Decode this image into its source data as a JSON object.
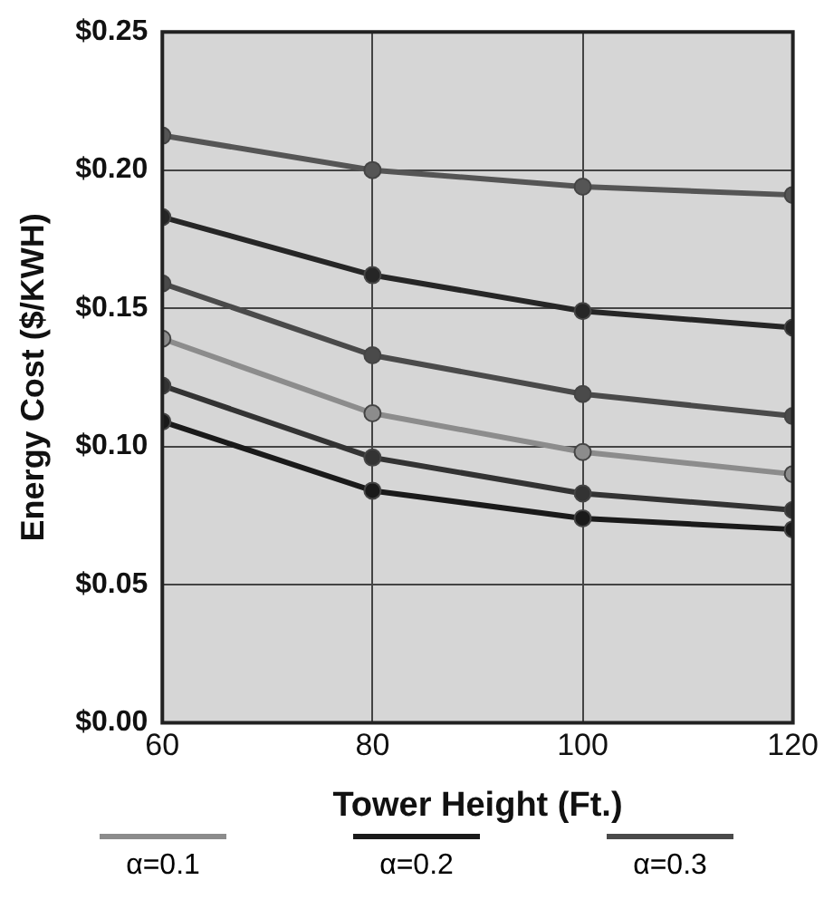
{
  "chart_data": {
    "type": "line",
    "xlabel": "Tower Height (Ft.)",
    "ylabel": "Energy Cost ($/KWH)",
    "x": [
      60,
      80,
      100,
      120
    ],
    "series": [
      {
        "name": "α=0.1",
        "color": "#8c8c8c",
        "values": [
          0.139,
          0.112,
          0.098,
          0.09
        ]
      },
      {
        "name": "α=0.2",
        "color": "#1a1a1a",
        "values": [
          0.109,
          0.084,
          0.074,
          0.07
        ]
      },
      {
        "name": "α=0.3",
        "color": "#4a4a4a",
        "values": [
          0.159,
          0.133,
          0.119,
          0.111
        ]
      },
      {
        "color": "#555555",
        "values": [
          0.2125,
          0.2,
          0.194,
          0.191
        ]
      },
      {
        "color": "#262626",
        "values": [
          0.183,
          0.162,
          0.149,
          0.143
        ]
      },
      {
        "color": "#333333",
        "values": [
          0.122,
          0.096,
          0.083,
          0.077
        ]
      }
    ],
    "xlim": [
      60,
      120
    ],
    "xticks": [
      60,
      80,
      100,
      120
    ],
    "ylim": [
      0,
      0.25
    ],
    "yticks": [
      {
        "value": 0,
        "label": "$0.00"
      },
      {
        "value": 0.05,
        "label": "$0.05"
      },
      {
        "value": 0.1,
        "label": "$0.10"
      },
      {
        "value": 0.15,
        "label": "$0.15"
      },
      {
        "value": 0.2,
        "label": "$0.20"
      },
      {
        "value": 0.25,
        "label": "$0.25"
      }
    ],
    "grid": true,
    "legend": "bottom",
    "marker": "circle",
    "line_style": "solid"
  }
}
